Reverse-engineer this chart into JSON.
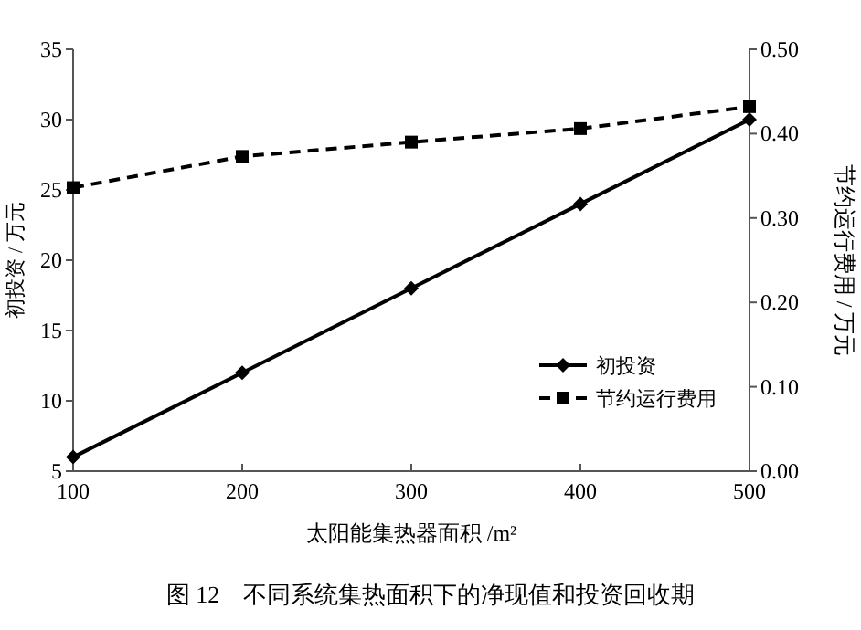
{
  "chart_data": {
    "type": "line",
    "xlabel": "太阳能集热器面积 /m²",
    "ylabel": "初投资 / 万元",
    "y2label": "节约运行费用 / 万元",
    "x": [
      100,
      200,
      300,
      400,
      500
    ],
    "xlim": [
      100,
      500
    ],
    "xticks": [
      100,
      200,
      300,
      400,
      500
    ],
    "ylim": [
      5,
      35
    ],
    "yticks": [
      5,
      10,
      15,
      20,
      25,
      30,
      35
    ],
    "y2lim": [
      0,
      0.5
    ],
    "y2ticks": [
      {
        "value": 0,
        "label": "0.00"
      },
      {
        "value": 0.1,
        "label": "0.10"
      },
      {
        "value": 0.2,
        "label": "0.20"
      },
      {
        "value": 0.3,
        "label": "0.30"
      },
      {
        "value": 0.4,
        "label": "0.40"
      },
      {
        "value": 0.5,
        "label": "0.50"
      }
    ],
    "series": [
      {
        "name": "初投资",
        "color": "#000000",
        "values": [
          6,
          12,
          18,
          24,
          30
        ],
        "marker": "diamond",
        "line_style": "solid"
      },
      {
        "name": "节约运行费用",
        "color": "#000000",
        "values": [
          0.336,
          0.373,
          0.39,
          0.406,
          0.432
        ],
        "axis": "y2",
        "marker": "square",
        "line_style": "dashed"
      }
    ],
    "legend": "bottom right",
    "grid": false,
    "annotations": [
      "图 12　不同系统集热面积下的净现值和投资回收期"
    ]
  }
}
